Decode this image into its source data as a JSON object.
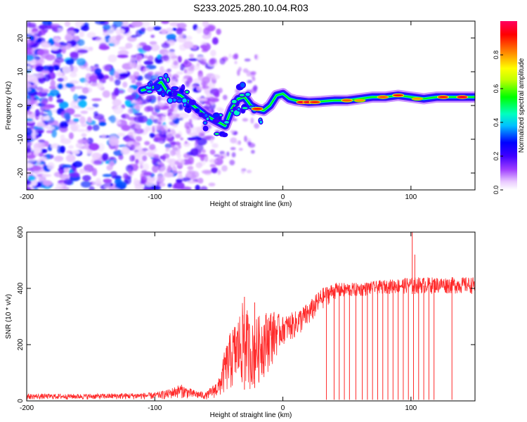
{
  "chart_data": [
    {
      "id": "spectrogram",
      "type": "heatmap",
      "title": "S233.2025.280.10.04.R03",
      "xlabel": "Height of straight line (km)",
      "ylabel": "Frequency (Hz)",
      "xlim": [
        -200,
        150
      ],
      "ylim": [
        -25,
        25
      ],
      "xticks": [
        -200,
        -100,
        0,
        100
      ],
      "yticks": [
        -20,
        -10,
        0,
        10,
        20
      ],
      "colorbar": {
        "label": "Normalized spectral amplitude",
        "range": [
          0,
          1
        ],
        "ticks": [
          "0.0",
          "0.2",
          "0.4",
          "0.6",
          "0.8"
        ],
        "tick_values": [
          0,
          0.2,
          0.4,
          0.6,
          0.8
        ],
        "colors": [
          "#ffffff",
          "#d9a6ff",
          "#8000ff",
          "#0000ff",
          "#00ffff",
          "#00ff00",
          "#ffff00",
          "#ff8000",
          "#ff0000"
        ]
      },
      "ridge": [
        {
          "x": -110,
          "y": 4.5
        },
        {
          "x": -100,
          "y": 5.5
        },
        {
          "x": -95,
          "y": 7
        },
        {
          "x": -90,
          "y": 4
        },
        {
          "x": -80,
          "y": 3
        },
        {
          "x": -70,
          "y": 0
        },
        {
          "x": -60,
          "y": -3
        },
        {
          "x": -50,
          "y": -5
        },
        {
          "x": -45,
          "y": -6
        },
        {
          "x": -40,
          "y": -1
        },
        {
          "x": -35,
          "y": 2
        },
        {
          "x": -30,
          "y": 2.5
        },
        {
          "x": -25,
          "y": 0
        },
        {
          "x": -20,
          "y": -1
        },
        {
          "x": -15,
          "y": -1.5
        },
        {
          "x": -10,
          "y": 0
        },
        {
          "x": -5,
          "y": 3
        },
        {
          "x": 0,
          "y": 3.5
        },
        {
          "x": 5,
          "y": 2
        },
        {
          "x": 10,
          "y": 1.5
        },
        {
          "x": 20,
          "y": 1
        },
        {
          "x": 30,
          "y": 1.2
        },
        {
          "x": 40,
          "y": 1.5
        },
        {
          "x": 50,
          "y": 1.5
        },
        {
          "x": 60,
          "y": 2
        },
        {
          "x": 70,
          "y": 2.5
        },
        {
          "x": 80,
          "y": 2.5
        },
        {
          "x": 90,
          "y": 3
        },
        {
          "x": 100,
          "y": 2.5
        },
        {
          "x": 110,
          "y": 2
        },
        {
          "x": 120,
          "y": 2.5
        },
        {
          "x": 130,
          "y": 2.5
        },
        {
          "x": 140,
          "y": 2.5
        },
        {
          "x": 150,
          "y": 2.5
        }
      ],
      "hot_spots": [
        {
          "x": 15,
          "y": 1,
          "amp": 0.95
        },
        {
          "x": 20,
          "y": 1,
          "amp": 0.95
        },
        {
          "x": 25,
          "y": 1,
          "amp": 0.9
        },
        {
          "x": 50,
          "y": 1.5,
          "amp": 0.85
        },
        {
          "x": 60,
          "y": 1.5,
          "amp": 0.8
        },
        {
          "x": 78,
          "y": 2.5,
          "amp": 0.85
        },
        {
          "x": 90,
          "y": 3,
          "amp": 0.9
        },
        {
          "x": 105,
          "y": 2,
          "amp": 0.8
        },
        {
          "x": 125,
          "y": 2.5,
          "amp": 0.9
        },
        {
          "x": 140,
          "y": 2.5,
          "amp": 0.95
        },
        {
          "x": -20,
          "y": -1,
          "amp": 0.9
        }
      ]
    },
    {
      "id": "snr",
      "type": "line",
      "xlabel": "Height of straight line (km)",
      "ylabel": "SNR (10 * v/v)",
      "xlim": [
        -200,
        150
      ],
      "ylim": [
        0,
        600
      ],
      "xticks": [
        -200,
        -100,
        0,
        100
      ],
      "yticks": [
        0,
        200,
        400,
        600
      ],
      "color": "#ff2a2a",
      "envelope": [
        {
          "x": -200,
          "lo": 5,
          "hi": 25
        },
        {
          "x": -150,
          "lo": 5,
          "hi": 25
        },
        {
          "x": -100,
          "lo": 5,
          "hi": 30
        },
        {
          "x": -90,
          "lo": 5,
          "hi": 40
        },
        {
          "x": -80,
          "lo": 10,
          "hi": 60
        },
        {
          "x": -70,
          "lo": 5,
          "hi": 40
        },
        {
          "x": -60,
          "lo": 5,
          "hi": 30
        },
        {
          "x": -50,
          "lo": 10,
          "hi": 80
        },
        {
          "x": -45,
          "lo": 20,
          "hi": 190
        },
        {
          "x": -40,
          "lo": 30,
          "hi": 260
        },
        {
          "x": -35,
          "lo": 40,
          "hi": 300
        },
        {
          "x": -30,
          "lo": 40,
          "hi": 370
        },
        {
          "x": -25,
          "lo": 40,
          "hi": 270
        },
        {
          "x": -20,
          "lo": 50,
          "hi": 300
        },
        {
          "x": -10,
          "lo": 110,
          "hi": 330
        },
        {
          "x": 0,
          "lo": 200,
          "hi": 300
        },
        {
          "x": 10,
          "lo": 220,
          "hi": 320
        },
        {
          "x": 20,
          "lo": 260,
          "hi": 350
        },
        {
          "x": 30,
          "lo": 320,
          "hi": 400
        },
        {
          "x": 40,
          "lo": 360,
          "hi": 420
        },
        {
          "x": 60,
          "lo": 370,
          "hi": 420
        },
        {
          "x": 80,
          "lo": 380,
          "hi": 430
        },
        {
          "x": 100,
          "lo": 380,
          "hi": 440
        },
        {
          "x": 120,
          "lo": 380,
          "hi": 440
        },
        {
          "x": 150,
          "lo": 380,
          "hi": 440
        }
      ],
      "dropouts_x": [
        34,
        40,
        44,
        48,
        52,
        57,
        62,
        66,
        70,
        74,
        78,
        82,
        86,
        90,
        94,
        98,
        102,
        106,
        110,
        114,
        118,
        132
      ],
      "spikes": [
        {
          "x": -30,
          "y": 370
        },
        {
          "x": -22,
          "y": 350
        },
        {
          "x": 101,
          "y": 600
        },
        {
          "x": 103,
          "y": 520
        }
      ]
    }
  ]
}
